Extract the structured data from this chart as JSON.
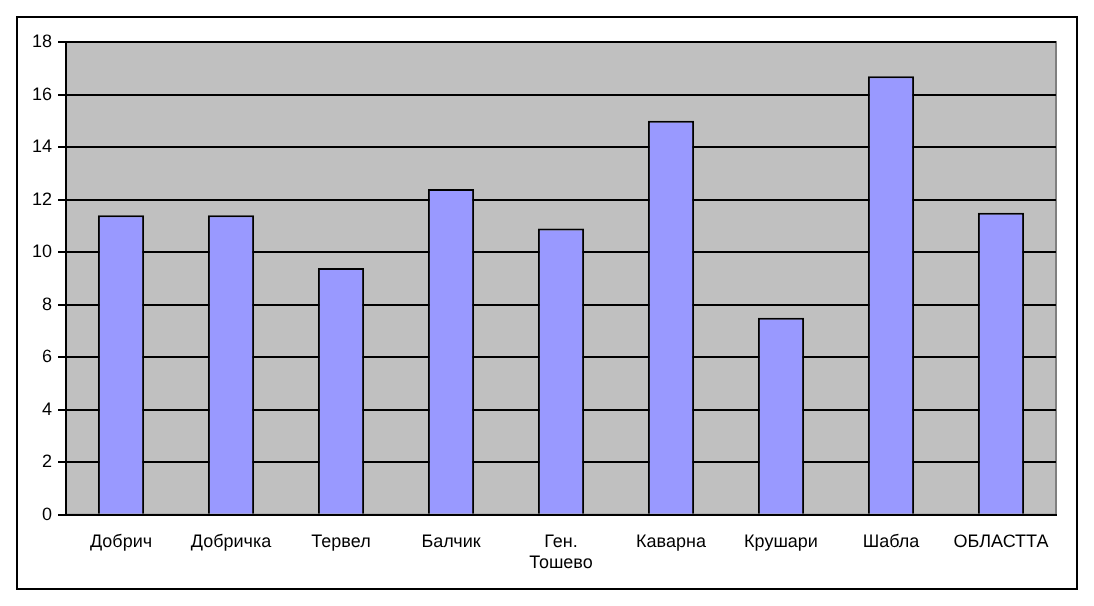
{
  "chart_data": {
    "type": "bar",
    "categories": [
      "Добрич",
      "Добричка",
      "Тервел",
      "Балчик",
      "Ген. Тошево",
      "Каварна",
      "Крушари",
      "Шабла",
      "ОБЛАСТТА"
    ],
    "values": [
      11.4,
      11.4,
      9.4,
      12.4,
      10.9,
      15.0,
      7.5,
      16.7,
      11.5
    ],
    "color": "#9999ff",
    "ylim": [
      0,
      18
    ],
    "yticks": [
      0,
      2,
      4,
      6,
      8,
      10,
      12,
      14,
      16,
      18
    ],
    "grid": "y"
  }
}
